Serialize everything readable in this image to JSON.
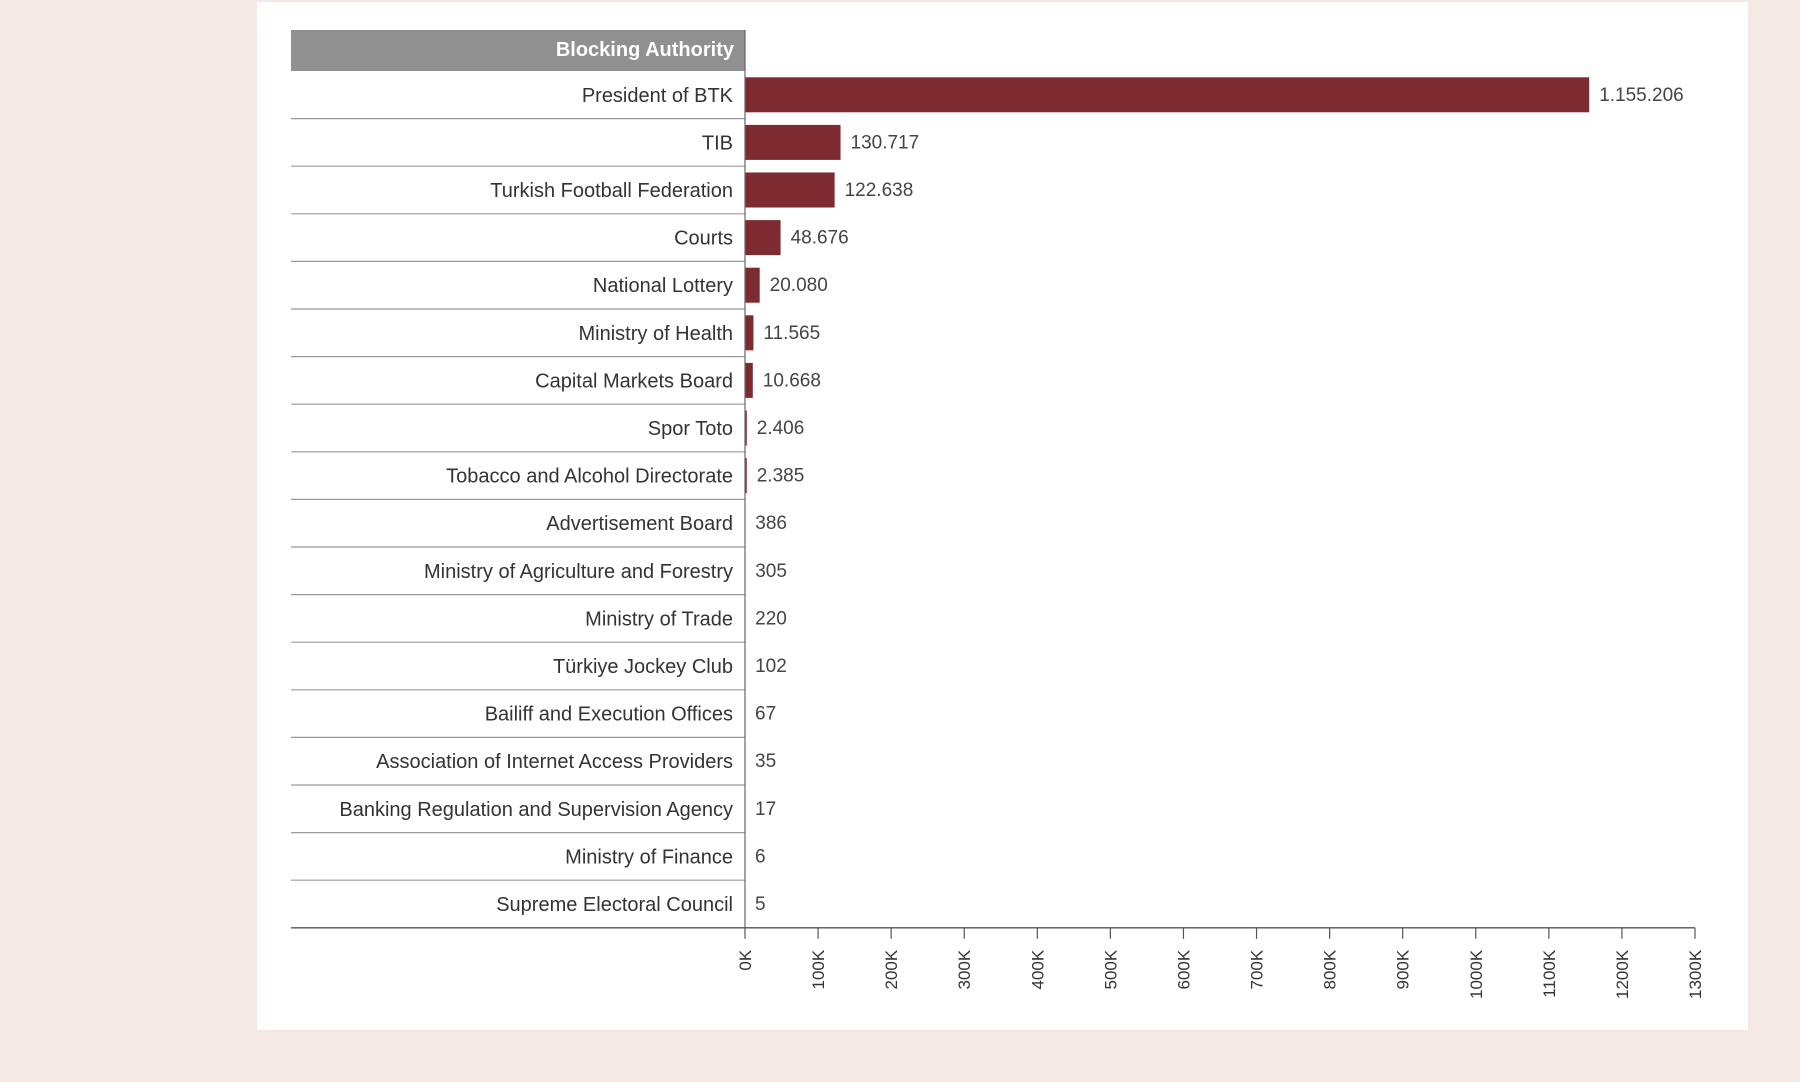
{
  "chart_data": {
    "type": "bar",
    "orientation": "horizontal",
    "header": "Blocking Authority",
    "categories": [
      "President of BTK",
      "TIB",
      "Turkish Football Federation",
      "Courts",
      "National Lottery",
      "Ministry of Health",
      "Capital Markets Board",
      "Spor Toto",
      "Tobacco and Alcohol Directorate",
      "Advertisement Board",
      "Ministry of Agriculture and Forestry",
      "Ministry of Trade",
      "Türkiye Jockey Club",
      "Bailiff and Execution Offices",
      "Association of Internet Access Providers",
      "Banking Regulation and Supervision Agency",
      "Ministry of Finance",
      "Supreme Electoral Council"
    ],
    "values": [
      1155206,
      130717,
      122638,
      48676,
      20080,
      11565,
      10668,
      2406,
      2385,
      386,
      305,
      220,
      102,
      67,
      35,
      17,
      6,
      5
    ],
    "value_labels": [
      "1.155.206",
      "130.717",
      "122.638",
      "48.676",
      "20.080",
      "11.565",
      "10.668",
      "2.406",
      "2.385",
      "386",
      "305",
      "220",
      "102",
      "67",
      "35",
      "17",
      "6",
      "5"
    ],
    "xlim": [
      0,
      1300000
    ],
    "xticks": [
      0,
      100000,
      200000,
      300000,
      400000,
      500000,
      600000,
      700000,
      800000,
      900000,
      1000000,
      1100000,
      1200000,
      1300000
    ],
    "xtick_labels": [
      "0K",
      "100K",
      "200K",
      "300K",
      "400K",
      "500K",
      "600K",
      "700K",
      "800K",
      "900K",
      "1000K",
      "1100K",
      "1200K",
      "1300K"
    ],
    "title": "",
    "xlabel": "",
    "ylabel": "",
    "grid": false,
    "colors": {
      "bar": "#7d2a31",
      "header_bg": "#909090",
      "page_bg": "#f3e8e3",
      "panel_bg": "#ffffff"
    }
  }
}
